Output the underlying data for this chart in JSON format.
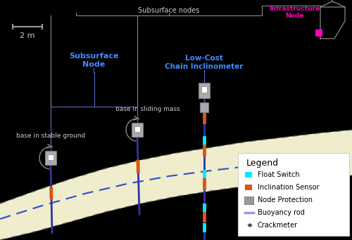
{
  "bg_color": "#000000",
  "slope_fill": "#f0edcc",
  "dashed_blue_color": "#3355cc",
  "dashed_black_color": "#555555",
  "text_color": "#cccccc",
  "blue_label_color": "#4488ff",
  "magenta_color": "#ff00bb",
  "cyan_color": "#00eeff",
  "orange_color": "#dd5511",
  "gray_box_color": "#aaaaaa",
  "lavender_color": "#9999ee",
  "legend_bg": "#ffffff",
  "rod_color": "#3333aa",
  "bracket_color": "#888888",
  "scale_bar_color": "#999999",
  "title_subsurface_nodes": "Subsurface nodes",
  "title_infra_node": "Infrastructure\nNode",
  "label_subsurface_node": "Subsurface\nNode",
  "label_chain_inclinometer": "Low-Cost\nChain Inclinometer",
  "label_base_stable": "base in stable ground",
  "label_base_sliding": "base in sliding mass",
  "label_2m": "2 m",
  "legend_title": "Legend",
  "legend_items": [
    "Float Switch",
    "Inclination Sensor",
    "Node Protection",
    "Buoyancy rod",
    "Crackmeter"
  ]
}
